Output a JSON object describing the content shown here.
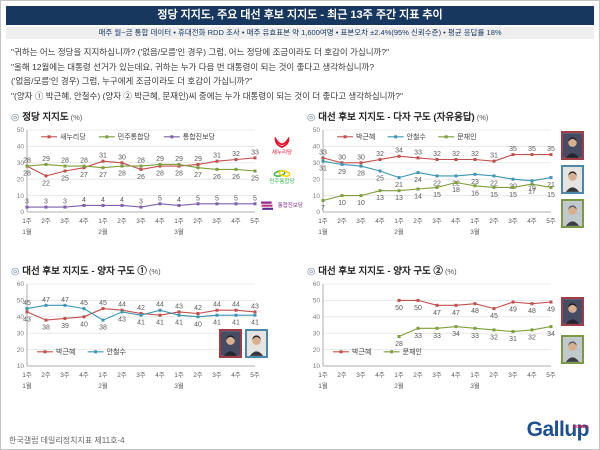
{
  "header": {
    "title": "정당 지지도, 주요 대선 후보 지지도 - 최근 13주 주간 지표 추이",
    "subtitle": "매주 월~금 통합 데이터 • 휴대전화 RDD 조사 • 매주 유효표본 약 1,600여명 • 표본오차 ±2.4%(95% 신뢰수준) • 평균 응답률 18%"
  },
  "questions": {
    "lines": [
      "\"귀하는 어느 정당을 지지하십니까? ('없음/모름'인 경우) 그럼, 어느 정당에 조금이라도 더 호감이 가십니까?\"",
      "\"올해 12월에는 대통령 선거가 있는데요, 귀하는 누가 다음 번 대통령이 되는 것이 좋다고 생각하십니까?",
      "('없음/모름'인 경우) 그럼, 누구에게 조금이라도 더 호감이 가십니까?\"",
      "\"(양자 ① 박근혜, 안철수) (양자 ② 박근혜, 문재인)씨 중에는 누가 대통령이 되는 것이 더 좋다고 생각하십니까?\""
    ]
  },
  "ui": {
    "bullet": "◎"
  },
  "party_logos": [
    {
      "name": "새누리당",
      "color": "#E8112D"
    },
    {
      "name": "민주통합당",
      "color": "#3AB34A"
    },
    {
      "name": "통합진보당",
      "color": "#782B90"
    }
  ],
  "footer": {
    "source": "한국갤럽 데일리정치지표 제11호-4",
    "logo_text": "Gallup",
    "logo_sup": "KOREA"
  },
  "colors": {
    "header_navy": "#17375E",
    "red": "#C0504D",
    "green": "#7E9E3D",
    "purple": "#7D60A8",
    "blue": "#3F96B4",
    "label_gray": "#595959"
  },
  "chart_data": [
    {
      "type": "line",
      "title": "정당 지지도",
      "unit": "(%)",
      "ylim": [
        0,
        50
      ],
      "yticks": [
        0,
        10,
        20,
        30,
        40,
        50
      ],
      "legend": "top",
      "categories": [
        "1주",
        "2주",
        "3주",
        "4주",
        "1주",
        "2주",
        "3주",
        "4주",
        "1주",
        "2주",
        "3주",
        "4주",
        "5주"
      ],
      "months": [
        {
          "index": 0,
          "label": "1월"
        },
        {
          "index": 4,
          "label": "2월"
        },
        {
          "index": 8,
          "label": "3월"
        }
      ],
      "series": [
        {
          "name": "새누리당",
          "color": "#C0504D",
          "label_pos": "auto",
          "values": [
            28,
            22,
            25,
            27,
            31,
            30,
            26,
            28,
            28,
            29,
            31,
            32,
            33
          ]
        },
        {
          "name": "민주통합당",
          "color": "#7E9E3D",
          "label_pos": "auto",
          "values": [
            28,
            29,
            28,
            28,
            27,
            28,
            28,
            29,
            29,
            27,
            26,
            26,
            25
          ]
        },
        {
          "name": "통합진보당",
          "color": "#7D60A8",
          "label_pos": "above",
          "values": [
            3,
            3,
            3,
            4,
            4,
            4,
            3,
            5,
            4,
            5,
            5,
            5,
            5
          ]
        }
      ]
    },
    {
      "type": "line",
      "title": "대선 후보 지지도 - 다자 구도 (자유응답)",
      "unit": "(%)",
      "ylim": [
        0,
        50
      ],
      "yticks": [
        0,
        10,
        20,
        30,
        40,
        50
      ],
      "legend": "top",
      "categories": [
        "1주",
        "2주",
        "3주",
        "4주",
        "1주",
        "2주",
        "3주",
        "4주",
        "1주",
        "2주",
        "3주",
        "4주",
        "5주"
      ],
      "months": [
        {
          "index": 0,
          "label": "1월"
        },
        {
          "index": 4,
          "label": "2월"
        },
        {
          "index": 8,
          "label": "3월"
        }
      ],
      "series": [
        {
          "name": "박근혜",
          "color": "#C0504D",
          "label_pos": "above",
          "values": [
            33,
            30,
            30,
            32,
            34,
            33,
            32,
            32,
            32,
            31,
            35,
            35,
            35
          ]
        },
        {
          "name": "안철수",
          "color": "#3F96B4",
          "label_pos": "below",
          "values": [
            31,
            29,
            28,
            25,
            21,
            24,
            22,
            22,
            23,
            22,
            20,
            19,
            21
          ]
        },
        {
          "name": "문재인",
          "color": "#7E9E3D",
          "label_pos": "below",
          "values": [
            7,
            10,
            10,
            13,
            13,
            14,
            15,
            18,
            16,
            15,
            15,
            17,
            15
          ]
        }
      ]
    },
    {
      "type": "line",
      "title": "대선 후보 지지도 - 양자 구도 ①",
      "unit": "(%)",
      "ylim": [
        10,
        60
      ],
      "yticks": [
        10,
        20,
        30,
        40,
        50,
        60
      ],
      "legend": "bottom",
      "categories": [
        "1주",
        "2주",
        "3주",
        "4주",
        "1주",
        "2주",
        "3주",
        "4주",
        "1주",
        "2주",
        "3주",
        "4주",
        "5주"
      ],
      "months": [
        {
          "index": 0,
          "label": "1월"
        },
        {
          "index": 4,
          "label": "2월"
        },
        {
          "index": 8,
          "label": "3월"
        }
      ],
      "series": [
        {
          "name": "박근혜",
          "color": "#C0504D",
          "label_pos": "auto",
          "values": [
            43,
            38,
            39,
            40,
            45,
            44,
            42,
            41,
            43,
            42,
            44,
            44,
            43
          ]
        },
        {
          "name": "안철수",
          "color": "#3F96B4",
          "label_pos": "auto",
          "values": [
            45,
            47,
            47,
            45,
            38,
            43,
            41,
            44,
            41,
            40,
            41,
            41,
            41
          ]
        }
      ]
    },
    {
      "type": "line",
      "title": "대선 후보 지지도 - 양자 구도 ②",
      "unit": "(%)",
      "ylim": [
        10,
        60
      ],
      "yticks": [
        10,
        20,
        30,
        40,
        50,
        60
      ],
      "legend": "bottom",
      "categories": [
        "1주",
        "2주",
        "3주",
        "4주",
        "1주",
        "2주",
        "3주",
        "4주",
        "1주",
        "2주",
        "3주",
        "4주",
        "5주"
      ],
      "months": [
        {
          "index": 0,
          "label": "1월"
        },
        {
          "index": 4,
          "label": "2월"
        },
        {
          "index": 8,
          "label": "3월"
        }
      ],
      "series": [
        {
          "name": "박근혜",
          "color": "#C0504D",
          "label_pos": "below",
          "values": [
            null,
            null,
            null,
            null,
            50,
            50,
            47,
            47,
            48,
            45,
            49,
            48,
            49
          ]
        },
        {
          "name": "문재인",
          "color": "#7E9E3D",
          "label_pos": "below",
          "values": [
            null,
            null,
            null,
            null,
            28,
            33,
            33,
            34,
            33,
            32,
            31,
            32,
            34
          ]
        }
      ]
    }
  ]
}
